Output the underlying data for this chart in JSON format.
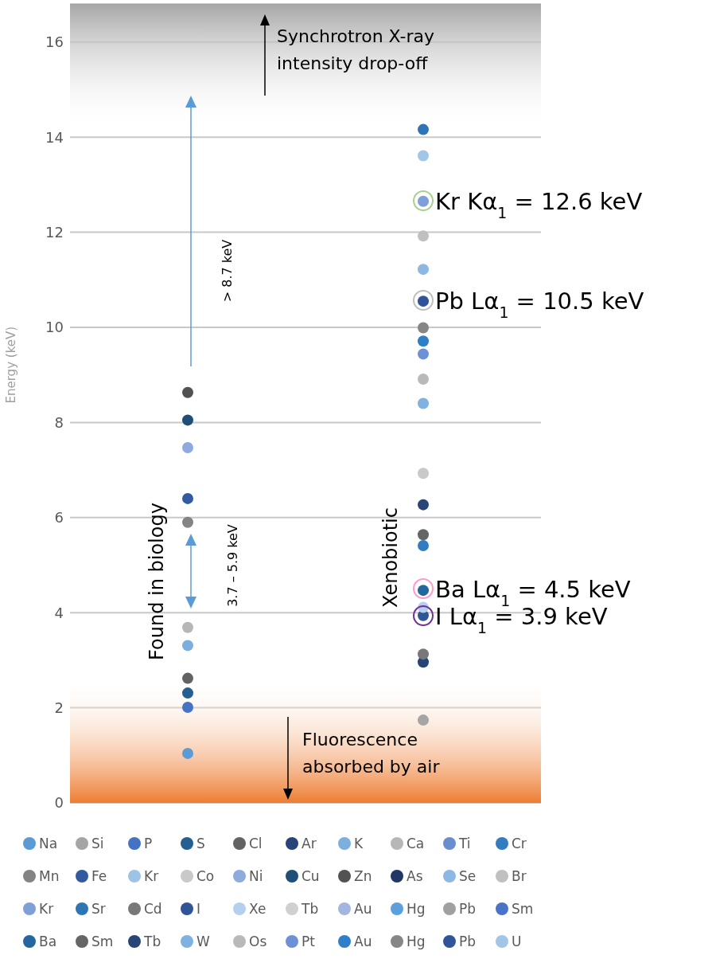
{
  "chart_data": {
    "type": "scatter",
    "ylabel": "Energy (keV)",
    "categories": [
      null,
      null
    ],
    "ylim": [
      0,
      16.8
    ],
    "yticks": [
      0,
      2,
      4,
      6,
      8,
      10,
      12,
      14,
      16
    ],
    "grid": "y",
    "legend": "bottom",
    "marker": "circle",
    "bands": [
      {
        "axis": "y",
        "from": 0,
        "to": 2.55,
        "label": "Fluorescence\nabsorbed by air",
        "color": "#ed7d31"
      },
      {
        "axis": "y",
        "from": 14.25,
        "to": 16.8,
        "label": "Synchrotron X-ray\nintensity drop-off",
        "color": "#a6a6a6"
      }
    ],
    "annotations": [
      "Found in biology",
      "Xenobiotic",
      "> 8.7  keV",
      "3.7 – 5.9 keV",
      "Kr Kα$_{1}$ = 12.6 keV",
      "Pb Lα$_{1}$ = 10.5 keV",
      "Ba Lα$_{1}$ = 4.5 keV",
      "I Lα$_{1}$ = 3.9 keV"
    ],
    "series": [
      {
        "name": "Na",
        "color": "#5b9bd5",
        "values": [
          1.04,
          null
        ]
      },
      {
        "name": "Si",
        "color": "#a5a5a5",
        "values": [
          null,
          1.74
        ]
      },
      {
        "name": "P",
        "color": "#4472c4",
        "values": [
          2.01,
          null
        ]
      },
      {
        "name": "S",
        "color": "#255e91",
        "values": [
          2.31,
          null
        ]
      },
      {
        "name": "Cl",
        "color": "#636363",
        "values": [
          2.62,
          null
        ]
      },
      {
        "name": "Ar",
        "color": "#264478",
        "values": [
          null,
          2.96
        ]
      },
      {
        "name": "K",
        "color": "#7cafdd",
        "values": [
          3.31,
          null
        ]
      },
      {
        "name": "Ca",
        "color": "#b7b7b7",
        "values": [
          3.69,
          null
        ]
      },
      {
        "name": "Ti",
        "color": "#698ed0",
        "values": [
          null,
          null
        ]
      },
      {
        "name": "Cr",
        "color": "#327dc2",
        "values": [
          null,
          5.41
        ]
      },
      {
        "name": "Mn",
        "color": "#848484",
        "values": [
          5.9,
          null
        ]
      },
      {
        "name": "Fe",
        "color": "#335aa1",
        "values": [
          6.4,
          null
        ]
      },
      {
        "name": "Kr",
        "color": "#9dc3e6",
        "values": [
          null,
          null
        ]
      },
      {
        "name": "Co",
        "color": "#c9c9c9",
        "values": [
          null,
          6.93
        ]
      },
      {
        "name": "Ni",
        "color": "#8faadc",
        "values": [
          7.47,
          null
        ]
      },
      {
        "name": "Cu",
        "color": "#1f4e79",
        "values": [
          8.05,
          null
        ]
      },
      {
        "name": "Zn",
        "color": "#525252",
        "values": [
          8.63,
          null
        ]
      },
      {
        "name": "As",
        "color": "#203864",
        "values": [
          null,
          null
        ]
      },
      {
        "name": "Se",
        "color": "#8cb9e3",
        "values": [
          null,
          11.22
        ]
      },
      {
        "name": "Br",
        "color": "#c0c0c0",
        "values": [
          null,
          11.92
        ]
      },
      {
        "name": "Kr",
        "color": "#7f9fd8",
        "values": [
          null,
          12.65
        ]
      },
      {
        "name": "Sr",
        "color": "#2e75b6",
        "values": [
          null,
          14.16
        ]
      },
      {
        "name": "Cd",
        "color": "#787878",
        "values": [
          null,
          3.13
        ]
      },
      {
        "name": "I",
        "color": "#2f5597",
        "values": [
          null,
          3.94
        ]
      },
      {
        "name": "Xe",
        "color": "#b4d0ee",
        "values": [
          null,
          4.11
        ]
      },
      {
        "name": "Tb",
        "color": "#d0d0d0",
        "values": [
          null,
          null
        ]
      },
      {
        "name": "Au",
        "color": "#a3b6e0",
        "values": [
          null,
          null
        ]
      },
      {
        "name": "Hg",
        "color": "#5ba0dd",
        "values": [
          null,
          null
        ]
      },
      {
        "name": "Pb",
        "color": "#a0a0a0",
        "values": [
          null,
          null
        ]
      },
      {
        "name": "Sm",
        "color": "#4a72c9",
        "values": [
          null,
          null
        ]
      },
      {
        "name": "Ba",
        "color": "#26669f",
        "values": [
          null,
          4.47
        ]
      },
      {
        "name": "Sm",
        "color": "#656565",
        "values": [
          null,
          5.64
        ]
      },
      {
        "name": "Tb",
        "color": "#294476",
        "values": [
          null,
          6.27
        ]
      },
      {
        "name": "W",
        "color": "#7fb2e0",
        "values": [
          null,
          8.4
        ]
      },
      {
        "name": "Os",
        "color": "#b9b9b9",
        "values": [
          null,
          8.91
        ]
      },
      {
        "name": "Pt",
        "color": "#6d90d6",
        "values": [
          null,
          9.44
        ]
      },
      {
        "name": "Au",
        "color": "#2f7fc8",
        "values": [
          null,
          9.71
        ]
      },
      {
        "name": "Hg",
        "color": "#868686",
        "values": [
          null,
          9.99
        ]
      },
      {
        "name": "Pb",
        "color": "#30539a",
        "values": [
          null,
          10.55
        ]
      },
      {
        "name": "U",
        "color": "#a2c6e8",
        "values": [
          null,
          13.61
        ]
      }
    ]
  }
}
